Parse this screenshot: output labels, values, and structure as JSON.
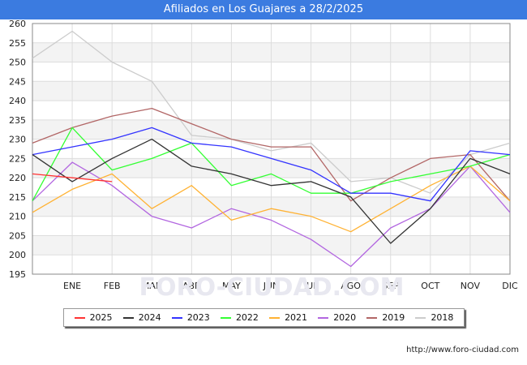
{
  "title": "Afiliados en Los Guajares a 28/2/2025",
  "source": "http://www.foro-ciudad.com",
  "watermark": "FORO-CIUDAD.COM",
  "chart_data": {
    "type": "line",
    "categories": [
      "",
      "ENE",
      "FEB",
      "MAR",
      "ABR",
      "MAY",
      "JUN",
      "JUL",
      "AGO",
      "SEP",
      "OCT",
      "NOV",
      "DIC"
    ],
    "ylim": [
      195,
      260
    ],
    "yticks": [
      195,
      200,
      205,
      210,
      215,
      220,
      225,
      230,
      235,
      240,
      245,
      250,
      255,
      260
    ],
    "grid": true,
    "legend_position": "bottom",
    "series": [
      {
        "name": "2025",
        "color": "#ff3333",
        "values": [
          221,
          220,
          219,
          null,
          null,
          null,
          null,
          null,
          null,
          null,
          null,
          null,
          null
        ]
      },
      {
        "name": "2024",
        "color": "#333333",
        "values": [
          226,
          219,
          225,
          230,
          223,
          221,
          218,
          219,
          215,
          203,
          212,
          225,
          221
        ]
      },
      {
        "name": "2023",
        "color": "#3333ff",
        "values": [
          226,
          228,
          230,
          233,
          229,
          228,
          225,
          222,
          216,
          216,
          214,
          227,
          226
        ]
      },
      {
        "name": "2022",
        "color": "#33ff33",
        "values": [
          214,
          233,
          222,
          225,
          229,
          218,
          221,
          216,
          216,
          219,
          221,
          223,
          226
        ]
      },
      {
        "name": "2021",
        "color": "#ffb233",
        "values": [
          211,
          217,
          221,
          212,
          218,
          209,
          212,
          210,
          206,
          212,
          218,
          223,
          214
        ]
      },
      {
        "name": "2020",
        "color": "#b266e0",
        "values": [
          214,
          224,
          218,
          210,
          207,
          212,
          209,
          204,
          197,
          207,
          212,
          223,
          211
        ]
      },
      {
        "name": "2019",
        "color": "#b26666",
        "values": [
          229,
          233,
          236,
          238,
          234,
          230,
          228,
          228,
          214,
          220,
          225,
          226,
          214
        ]
      },
      {
        "name": "2018",
        "color": "#cccccc",
        "values": [
          251,
          258,
          250,
          245,
          231,
          230,
          227,
          229,
          219,
          220,
          216,
          226,
          229
        ]
      }
    ]
  }
}
